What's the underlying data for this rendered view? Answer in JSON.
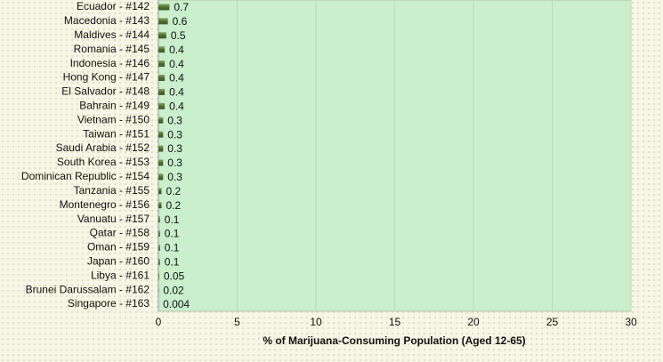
{
  "chart_data": {
    "type": "bar",
    "orientation": "horizontal",
    "categories": [
      "Ecuador - #142",
      "Macedonia - #143",
      "Maldives - #144",
      "Romania - #145",
      "Indonesia - #146",
      "Hong Kong - #147",
      "El Salvador - #148",
      "Bahrain - #149",
      "Vietnam - #150",
      "Taiwan - #151",
      "Saudi Arabia - #152",
      "South Korea - #153",
      "Dominican Republic - #154",
      "Tanzania - #155",
      "Montenegro - #156",
      "Vanuatu - #157",
      "Qatar - #158",
      "Oman - #159",
      "Japan - #160",
      "Libya - #161",
      "Brunei Darussalam - #162",
      "Singapore - #163"
    ],
    "values": [
      0.7,
      0.6,
      0.5,
      0.4,
      0.4,
      0.4,
      0.4,
      0.4,
      0.3,
      0.3,
      0.3,
      0.3,
      0.3,
      0.2,
      0.2,
      0.1,
      0.1,
      0.1,
      0.1,
      0.05,
      0.02,
      0.004
    ],
    "color": "#5b7a3c",
    "x_label": "% of Marijuana-Consuming Population (Aged 12-65)",
    "xlim": [
      0,
      30
    ],
    "xticks": [
      0,
      5,
      10,
      15,
      20,
      25,
      30
    ],
    "grid": true
  }
}
